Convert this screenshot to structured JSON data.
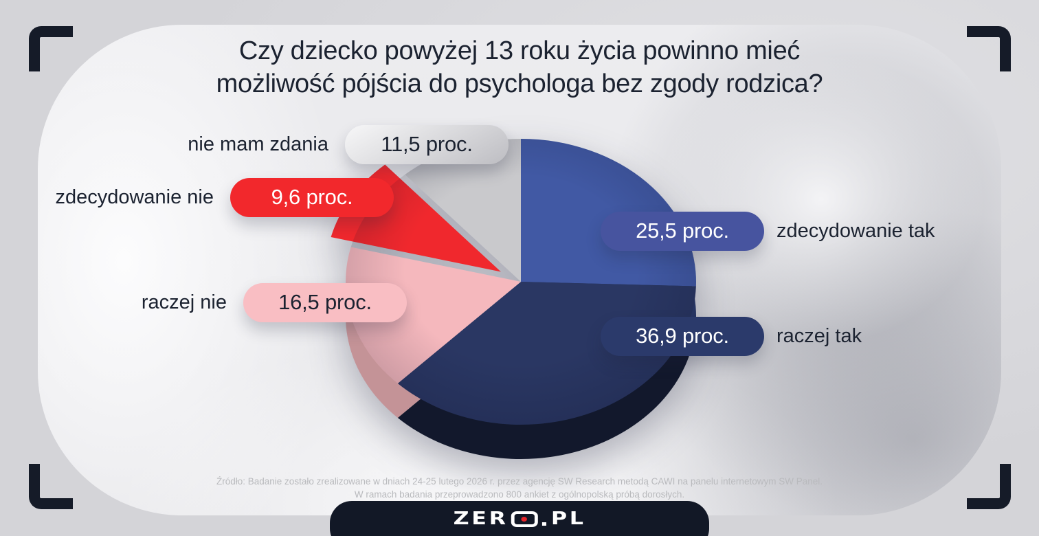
{
  "title": {
    "line1": "Czy dziecko powyżej 13 roku życia powinno mieć",
    "line2": "możliwość pójścia do psychologa bez zgody rodzica?"
  },
  "chart_data": {
    "type": "pie",
    "title": "Czy dziecko powyżej 13 roku życia powinno mieć możliwość pójścia do psychologa bez zgody rodzica?",
    "unit": "proc.",
    "start_angle_deg": 0,
    "direction": "clockwise",
    "legend_position": "callouts-beside-slices",
    "slices": [
      {
        "label": "zdecydowanie tak",
        "value": 25.5,
        "display": "25,5 proc.",
        "color": "#4159a4",
        "pill_color": "#47549f",
        "text_color": "#ffffff",
        "side": "right",
        "exploded": false
      },
      {
        "label": "raczej tak",
        "value": 36.9,
        "display": "36,9 proc.",
        "color": "#2a3763",
        "pill_color": "#2b3a6b",
        "text_color": "#ffffff",
        "side": "right",
        "exploded": false
      },
      {
        "label": "raczej nie",
        "value": 16.5,
        "display": "16,5 proc.",
        "color": "#f5b8bd",
        "pill_color": "#f9bec3",
        "text_color": "#1b2230",
        "side": "left",
        "exploded": false
      },
      {
        "label": "zdecydowanie nie",
        "value": 9.6,
        "display": "9,6 proc.",
        "color": "#f0282d",
        "pill_color": "#f2282c",
        "text_color": "#ffffff",
        "side": "left",
        "exploded": true
      },
      {
        "label": "nie mam zdania",
        "value": 11.5,
        "display": "11,5 proc.",
        "color": "#c9c9cc",
        "pill_gradient": "linear-gradient(150deg,#f7f7f8 0%,#d8d8db 55%,#bdbdc2 100%)",
        "text_color": "#1b2230",
        "side": "left",
        "exploded": false
      }
    ]
  },
  "source": {
    "line1": "Źródło: Badanie zostało zrealizowane w dniach 24-25 lutego 2026 r. przez agencję SW Research metodą CAWI na panelu internetowym SW Panel.",
    "line2": "W ramach badania przeprowadzono 800 ankiet z ogólnopolską próbą dorosłych."
  },
  "logo": {
    "full": "ZERO.PL",
    "zer": "ZER",
    "o": "O",
    "dot": ".",
    "pl": "PL",
    "dot_color": "#e5252a"
  }
}
